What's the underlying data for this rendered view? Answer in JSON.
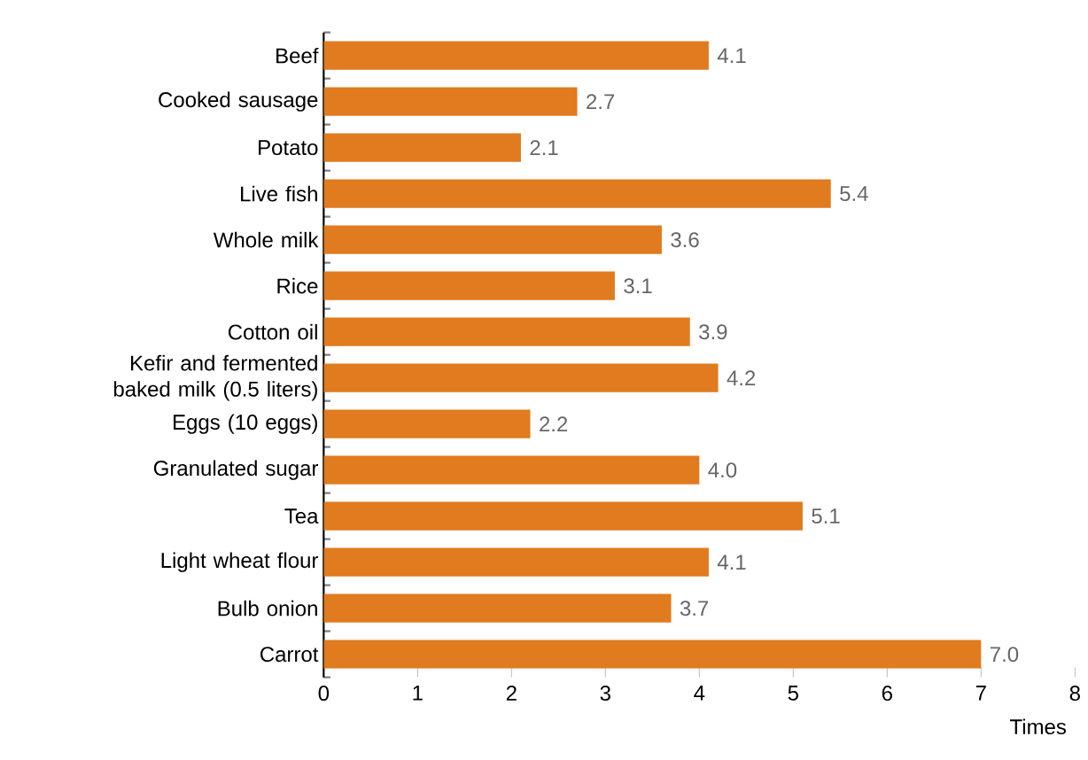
{
  "chart_data": {
    "type": "bar",
    "orientation": "horizontal",
    "xlabel": "Times",
    "categories": [
      "Beef",
      "Cooked sausage",
      "Potato",
      "Live fish",
      "Whole milk",
      "Rice",
      "Cotton oil",
      "Kefir and fermented baked milk (0.5 liters)",
      "Eggs (10 eggs)",
      "Granulated sugar",
      "Tea",
      "Light wheat flour",
      "Bulb onion",
      "Carrot"
    ],
    "values": [
      4.1,
      2.7,
      2.1,
      5.4,
      3.6,
      3.1,
      3.9,
      4.2,
      2.2,
      4.0,
      5.1,
      4.1,
      3.7,
      7.0
    ],
    "color": "#e07b1f",
    "xlim": [
      0,
      8
    ],
    "xticks": [
      0,
      1,
      2,
      3,
      4,
      5,
      6,
      7,
      8
    ],
    "value_labels": [
      "4.1",
      "2.7",
      "2.1",
      "5.4",
      "3.6",
      "3.1",
      "3.9",
      "4.2",
      "2.2",
      "4.0",
      "5.1",
      "4.1",
      "3.7",
      "7.0"
    ]
  }
}
